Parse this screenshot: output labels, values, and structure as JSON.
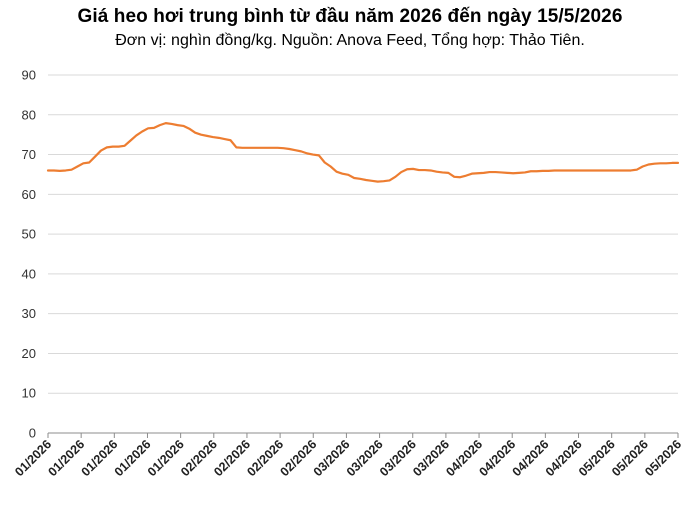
{
  "chart_data": {
    "type": "line",
    "title": "Giá heo hơi trung bình từ đầu năm 2026 đến ngày 15/5/2026",
    "subtitle": "Đơn vị: nghìn đồng/kg. Nguồn: Anova Feed, Tổng hợp: Thảo Tiên.",
    "xlabel": "",
    "ylabel": "",
    "ylim": [
      0,
      90
    ],
    "yticks": [
      "0",
      "10",
      "20",
      "30",
      "40",
      "50",
      "60",
      "70",
      "80",
      "90"
    ],
    "x_tick_labels": [
      "01/2026",
      "01/2026",
      "01/2026",
      "01/2026",
      "01/2026",
      "02/2026",
      "02/2026",
      "02/2026",
      "02/2026",
      "03/2026",
      "03/2026",
      "03/2026",
      "03/2026",
      "04/2026",
      "04/2026",
      "04/2026",
      "04/2026",
      "05/2026",
      "05/2026",
      "05/2026"
    ],
    "grid": true,
    "line_color": "#ED7D31",
    "series": [
      {
        "values": [
          66,
          66,
          65.9,
          66,
          66.2,
          67,
          67.8,
          68,
          69.5,
          71,
          71.8,
          72,
          72,
          72.2,
          73.5,
          74.8,
          75.8,
          76.6,
          76.7,
          77.4,
          77.9,
          77.7,
          77.4,
          77.2,
          76.5,
          75.5,
          75,
          74.7,
          74.4,
          74.2,
          73.9,
          73.6,
          71.8,
          71.7,
          71.7,
          71.7,
          71.7,
          71.7,
          71.7,
          71.7,
          71.6,
          71.4,
          71.1,
          70.8,
          70.3,
          70,
          69.8,
          68,
          67,
          65.7,
          65.2,
          64.9,
          64.1,
          63.9,
          63.6,
          63.4,
          63.2,
          63.3,
          63.5,
          64.4,
          65.6,
          66.3,
          66.4,
          66.1,
          66.1,
          66,
          65.7,
          65.5,
          65.4,
          64.4,
          64.3,
          64.7,
          65.2,
          65.3,
          65.4,
          65.6,
          65.6,
          65.5,
          65.4,
          65.3,
          65.4,
          65.5,
          65.8,
          65.8,
          65.9,
          65.9,
          66,
          66,
          66,
          66,
          66,
          66,
          66,
          66,
          66,
          66,
          66,
          66,
          66,
          66,
          66.2,
          67,
          67.5,
          67.7,
          67.8,
          67.8,
          67.9,
          67.9
        ]
      }
    ]
  }
}
